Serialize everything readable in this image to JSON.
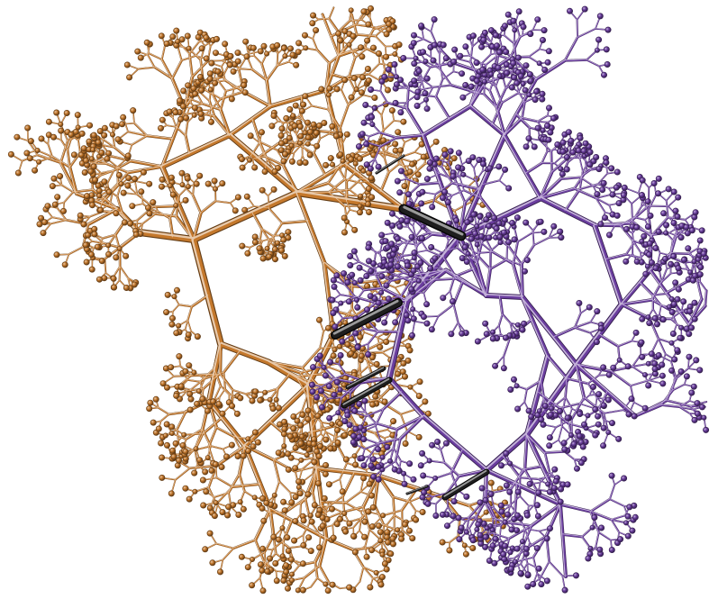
{
  "colors": {
    "orange": "#c4782c",
    "purple": "#6a3d9e",
    "bridge": "#1e1e1e",
    "background": "#ffffff"
  }
}
